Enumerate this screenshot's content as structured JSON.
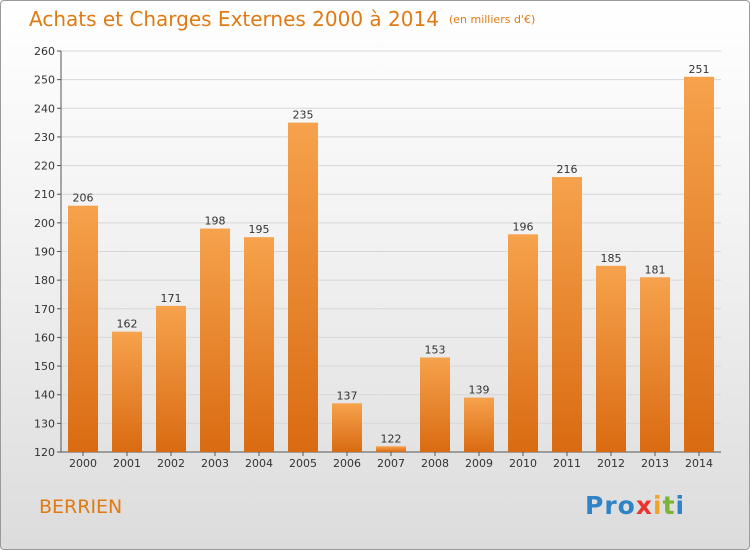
{
  "title": "Achats et Charges Externes 2000 à 2014",
  "subtitle": "(en milliers d'€)",
  "place": "BERRIEN",
  "logo": {
    "letters": [
      "P",
      "r",
      "o",
      "x",
      "i",
      "t",
      "i"
    ],
    "colors": [
      "#2e84c6",
      "#2e84c6",
      "#2e84c6",
      "#e8352f",
      "#f1a524",
      "#7bb535",
      "#2e84c6"
    ]
  },
  "colors": {
    "accent": "#e07a12",
    "bar_top": "#f6a24c",
    "bar_bottom": "#d96b12",
    "grid": "#d7d7d7"
  },
  "chart_data": {
    "type": "bar",
    "categories": [
      "2000",
      "2001",
      "2002",
      "2003",
      "2004",
      "2005",
      "2006",
      "2007",
      "2008",
      "2009",
      "2010",
      "2011",
      "2012",
      "2013",
      "2014"
    ],
    "values": [
      206,
      162,
      171,
      198,
      195,
      235,
      137,
      122,
      153,
      139,
      196,
      216,
      185,
      181,
      251
    ],
    "title": "Achats et Charges Externes 2000 à 2014",
    "subtitle": "(en milliers d'€)",
    "ylim": [
      120,
      260
    ],
    "yticks": [
      120,
      130,
      140,
      150,
      160,
      170,
      180,
      190,
      200,
      210,
      220,
      230,
      240,
      250,
      260
    ],
    "grid": true,
    "data_labels": true
  }
}
